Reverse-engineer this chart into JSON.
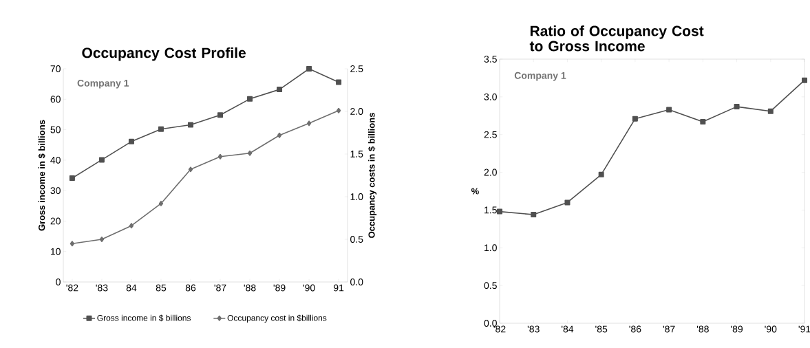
{
  "chart_data": [
    {
      "type": "line",
      "title": "Occupancy Cost Profile",
      "ylabel": "Gross income in $ billions",
      "y2label": "Occupancy costs in $ billions",
      "annotations": [
        "Company 1"
      ],
      "categories": [
        "'82",
        "'83",
        "84",
        "85",
        "86",
        "'87",
        "'88",
        "'89",
        "'90",
        "91"
      ],
      "series": [
        {
          "name": "Gross income in $ billions",
          "color": "#505050",
          "marker": "square",
          "values": [
            34.1,
            40.1,
            46.1,
            50.2,
            51.6,
            54.8,
            60.1,
            63.2,
            70,
            65.6
          ]
        },
        {
          "name": "Occupancy cost in $billions",
          "color": "#6e6e6e",
          "marker": "diamond",
          "axis": "y2",
          "values": [
            0.45,
            0.5,
            0.66,
            0.92,
            1.32,
            1.47,
            1.51,
            1.72,
            1.86,
            2.01
          ]
        }
      ],
      "ylim": [
        0,
        70
      ],
      "yticks": [
        0,
        10,
        20,
        30,
        40,
        50,
        60,
        70
      ],
      "y2lim": [
        0,
        2.5
      ],
      "y2ticks": [
        {
          "value": 0,
          "label": "0.0"
        },
        0.5,
        {
          "value": 1,
          "label": "1.0"
        },
        1.5,
        {
          "value": 2,
          "label": "2.0"
        },
        2.5
      ],
      "legend": "bottom"
    },
    {
      "type": "line",
      "title": "Ratio of Occupancy Cost to Gross Income",
      "ylabel": "%",
      "annotations": [
        "Company 1"
      ],
      "categories": [
        "'82",
        "'83",
        "'84",
        "'85",
        "'86",
        "'87",
        "'88",
        "'89",
        "'90",
        "'91"
      ],
      "series": [
        {
          "color": "#505050",
          "marker": "square",
          "values": [
            1.48,
            1.44,
            1.6,
            1.97,
            2.71,
            2.83,
            2.67,
            2.87,
            2.81,
            3.22
          ]
        }
      ],
      "ylim": [
        0,
        3.5
      ],
      "yticks": [
        {
          "value": 0,
          "label": "0.0"
        },
        0.5,
        {
          "value": 1,
          "label": "1.0"
        },
        1.5,
        {
          "value": 2,
          "label": "2.0"
        },
        2.5,
        {
          "value": 3,
          "label": "3.0"
        },
        3.5
      ]
    }
  ]
}
